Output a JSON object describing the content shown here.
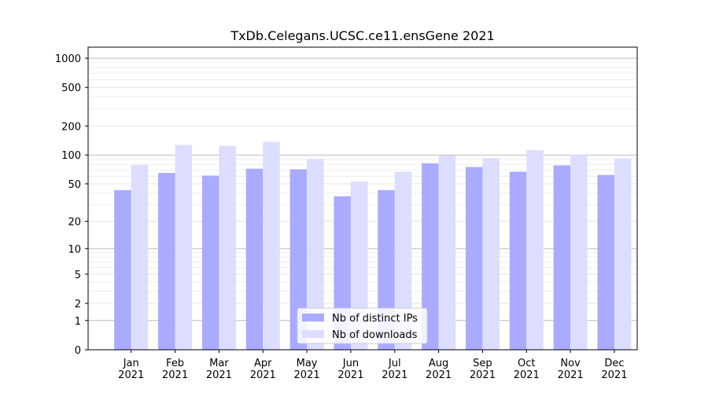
{
  "chart_data": {
    "type": "bar",
    "title": "TxDb.Celegans.UCSC.ce11.ensGene 2021",
    "xlabel": "",
    "ylabel": "",
    "yscale": "log(1+y)",
    "ylim": [
      0,
      1300
    ],
    "yticks": [
      0,
      1,
      2,
      5,
      10,
      20,
      50,
      100,
      200,
      500,
      1000
    ],
    "categories": [
      "Jan\n2021",
      "Feb\n2021",
      "Mar\n2021",
      "Apr\n2021",
      "May\n2021",
      "Jun\n2021",
      "Jul\n2021",
      "Aug\n2021",
      "Sep\n2021",
      "Oct\n2021",
      "Nov\n2021",
      "Dec\n2021"
    ],
    "series": [
      {
        "name": "Nb of distinct IPs",
        "color": "#aaaaff",
        "values": [
          43,
          65,
          61,
          72,
          71,
          37,
          43,
          82,
          75,
          67,
          78,
          62
        ]
      },
      {
        "name": "Nb of downloads",
        "color": "#ddddff",
        "values": [
          79,
          127,
          124,
          137,
          91,
          53,
          67,
          99,
          93,
          113,
          101,
          92
        ]
      }
    ],
    "legend": "lower-center",
    "grid": true
  }
}
